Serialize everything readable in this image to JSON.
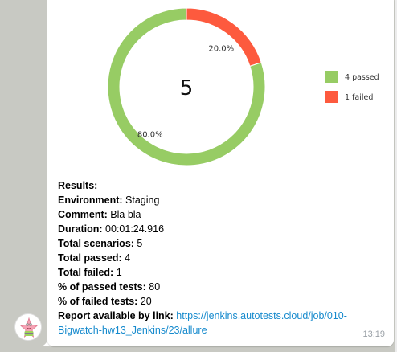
{
  "chart_data": {
    "type": "pie",
    "donut": true,
    "center_label": "5",
    "slices": [
      {
        "name": "4 passed",
        "value": 4,
        "percent_label": "80.0%",
        "color": "#97cc64"
      },
      {
        "name": "1 failed",
        "value": 1,
        "percent_label": "20.0%",
        "color": "#fd5a3e"
      }
    ],
    "legend": {
      "placement": "right",
      "entries": [
        "4 passed",
        "1 failed"
      ]
    }
  },
  "message": {
    "results_heading": "Results:",
    "environment_key": "Environment:",
    "environment_value": " Staging",
    "comment_key": "Comment:",
    "comment_value": " Bla bla",
    "duration_key": "Duration:",
    "duration_value": " 00:01:24.916",
    "total_scenarios_key": "Total scenarios:",
    "total_scenarios_value": " 5",
    "total_passed_key": "Total passed:",
    "total_passed_value": " 4",
    "total_failed_key": "Total failed:",
    "total_failed_value": " 1",
    "passed_pct_key": "% of passed tests:",
    "passed_pct_value": " 80",
    "failed_pct_key": "% of failed tests:",
    "failed_pct_value": " 20",
    "report_key": "Report available by link:",
    "report_link": "https://jenkins.autotests.cloud/job/010-Bigwatch-hw13_Jenkins/23/allure",
    "time": "13:19"
  },
  "colors": {
    "link": "#168acd",
    "timestamp": "#9aa0a6",
    "background": "#c8c9c3"
  }
}
